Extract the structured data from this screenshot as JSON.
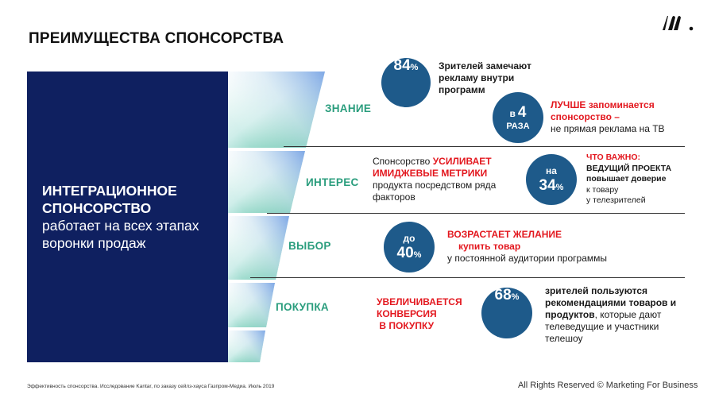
{
  "title": "ПРЕИМУЩЕСТВА СПОНСОРСТВА",
  "left_panel": {
    "line1": "ИНТЕГРАЦИОННОЕ",
    "line2": "СПОНСОРСТВО",
    "line3": "работает на всех этапах",
    "line4": "воронки продаж"
  },
  "stages": {
    "s1": "ЗНАНИЕ",
    "s2": "ИНТЕРЕС",
    "s3": "ВЫБОР",
    "s4": "ПОКУПКА"
  },
  "block1": {
    "circle_value": "84",
    "circle_unit": "%",
    "text": [
      "Зрителей замечают",
      "рекламу внутри",
      "программ"
    ],
    "circle2_prefix": "в",
    "circle2_value": "4",
    "circle2_suffix": "РАЗА",
    "red_line1": "ЛУЧШЕ запоминается",
    "red_line2": "спонсорство –",
    "normal_line": "не прямая реклама на ТВ"
  },
  "block2": {
    "text_prefix": "Спонсорство ",
    "red1": "УСИЛИВАЕТ",
    "red2": "ИМИДЖЕВЫЕ МЕТРИКИ",
    "normal1": "продукта посредством ряда",
    "normal2": "факторов",
    "circle_prefix": "на",
    "circle_value": "34",
    "circle_unit": "%",
    "important_label": "ЧТО ВАЖНО:",
    "important_line1": "ВЕДУЩИЙ ПРОЕКТА",
    "important_line2": "повышает доверие",
    "important_line3": "к товару",
    "important_line4": "у телезрителей"
  },
  "block3": {
    "circle_prefix": "до",
    "circle_value": "40",
    "circle_unit": "%",
    "red1": "ВОЗРАСТАЕТ ЖЕЛАНИЕ",
    "red2": "купить товар",
    "normal": "у постоянной аудитории программы"
  },
  "block4": {
    "red1": "УВЕЛИЧИВАЕТСЯ",
    "red2": "КОНВЕРСИЯ",
    "red3": " В ПОКУПКУ",
    "circle_value": "68",
    "circle_unit": "%",
    "text1": "зрителей пользуются",
    "text2": "рекомендациями товаров и",
    "text3": "продуктов",
    "text3b": ", которые дают",
    "text4": "телеведущие и участники",
    "text5": "телешоу"
  },
  "footer": {
    "source": "Эффективность спонсорства. Исследование Kantar, по заказу сейлз-хауса Газпром-Медиа. Июль 2019",
    "copyright": "All Rights Reserved © Marketing For Business"
  },
  "colors": {
    "navy": "#0f2060",
    "circle": "#1e5a8a",
    "stage_green": "#2a9d7d",
    "red": "#e3181f"
  }
}
